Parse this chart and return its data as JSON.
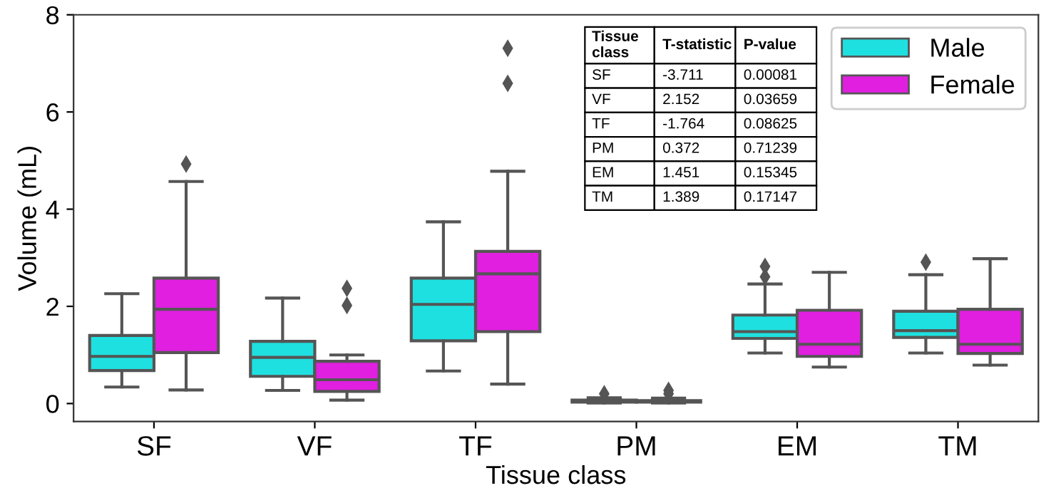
{
  "chart_data": {
    "type": "box",
    "xlabel": "Tissue class",
    "ylabel": "Volume (mL)",
    "categories": [
      "SF",
      "VF",
      "TF",
      "PM",
      "EM",
      "TM"
    ],
    "ylim": [
      -0.37,
      8
    ],
    "yticks": [
      0,
      2,
      4,
      6,
      8
    ],
    "grid": false,
    "legend": "top right",
    "marker": "diamond",
    "series": [
      {
        "name": "Male",
        "color": "#1fe0e0",
        "boxes": [
          {
            "low": 0.34,
            "q1": 0.68,
            "median": 0.97,
            "q3": 1.4,
            "high": 2.26
          },
          {
            "low": 0.27,
            "q1": 0.56,
            "median": 0.95,
            "q3": 1.28,
            "high": 2.17
          },
          {
            "low": 0.67,
            "q1": 1.29,
            "median": 2.04,
            "q3": 2.58,
            "high": 3.74
          },
          {
            "low": 0.01,
            "q1": 0.03,
            "median": 0.05,
            "q3": 0.07,
            "high": 0.12,
            "outliers": [
              0.2
            ]
          },
          {
            "low": 1.04,
            "q1": 1.34,
            "median": 1.48,
            "q3": 1.82,
            "high": 2.46,
            "outliers": [
              2.61,
              2.82
            ]
          },
          {
            "low": 1.04,
            "q1": 1.36,
            "median": 1.5,
            "q3": 1.9,
            "high": 2.65,
            "outliers": [
              2.91
            ]
          }
        ]
      },
      {
        "name": "Female",
        "color": "#e01fe0",
        "boxes": [
          {
            "low": 0.28,
            "q1": 1.05,
            "median": 1.94,
            "q3": 2.58,
            "high": 4.57,
            "outliers": [
              4.93
            ]
          },
          {
            "low": 0.07,
            "q1": 0.25,
            "median": 0.49,
            "q3": 0.87,
            "high": 1.0,
            "outliers": [
              2.02,
              2.37
            ]
          },
          {
            "low": 0.4,
            "q1": 1.48,
            "median": 2.67,
            "q3": 3.13,
            "high": 4.78,
            "outliers": [
              6.59,
              7.31
            ]
          },
          {
            "low": 0.01,
            "q1": 0.03,
            "median": 0.04,
            "q3": 0.06,
            "high": 0.11,
            "outliers": [
              0.2,
              0.27
            ]
          },
          {
            "low": 0.75,
            "q1": 0.97,
            "median": 1.22,
            "q3": 1.92,
            "high": 2.7
          },
          {
            "low": 0.79,
            "q1": 1.03,
            "median": 1.22,
            "q3": 1.94,
            "high": 2.98
          }
        ]
      }
    ],
    "annotations": [
      "Tissue\nclass",
      "T-statistic",
      "P-value",
      "SF",
      "-3.711",
      "0.00081",
      "VF",
      "2.152",
      "0.03659",
      "TF",
      "-1.764",
      "0.08625",
      "PM",
      "0.372",
      "0.71239",
      "EM",
      "1.451",
      "0.15345",
      "TM",
      "1.389",
      "0.17147"
    ]
  }
}
